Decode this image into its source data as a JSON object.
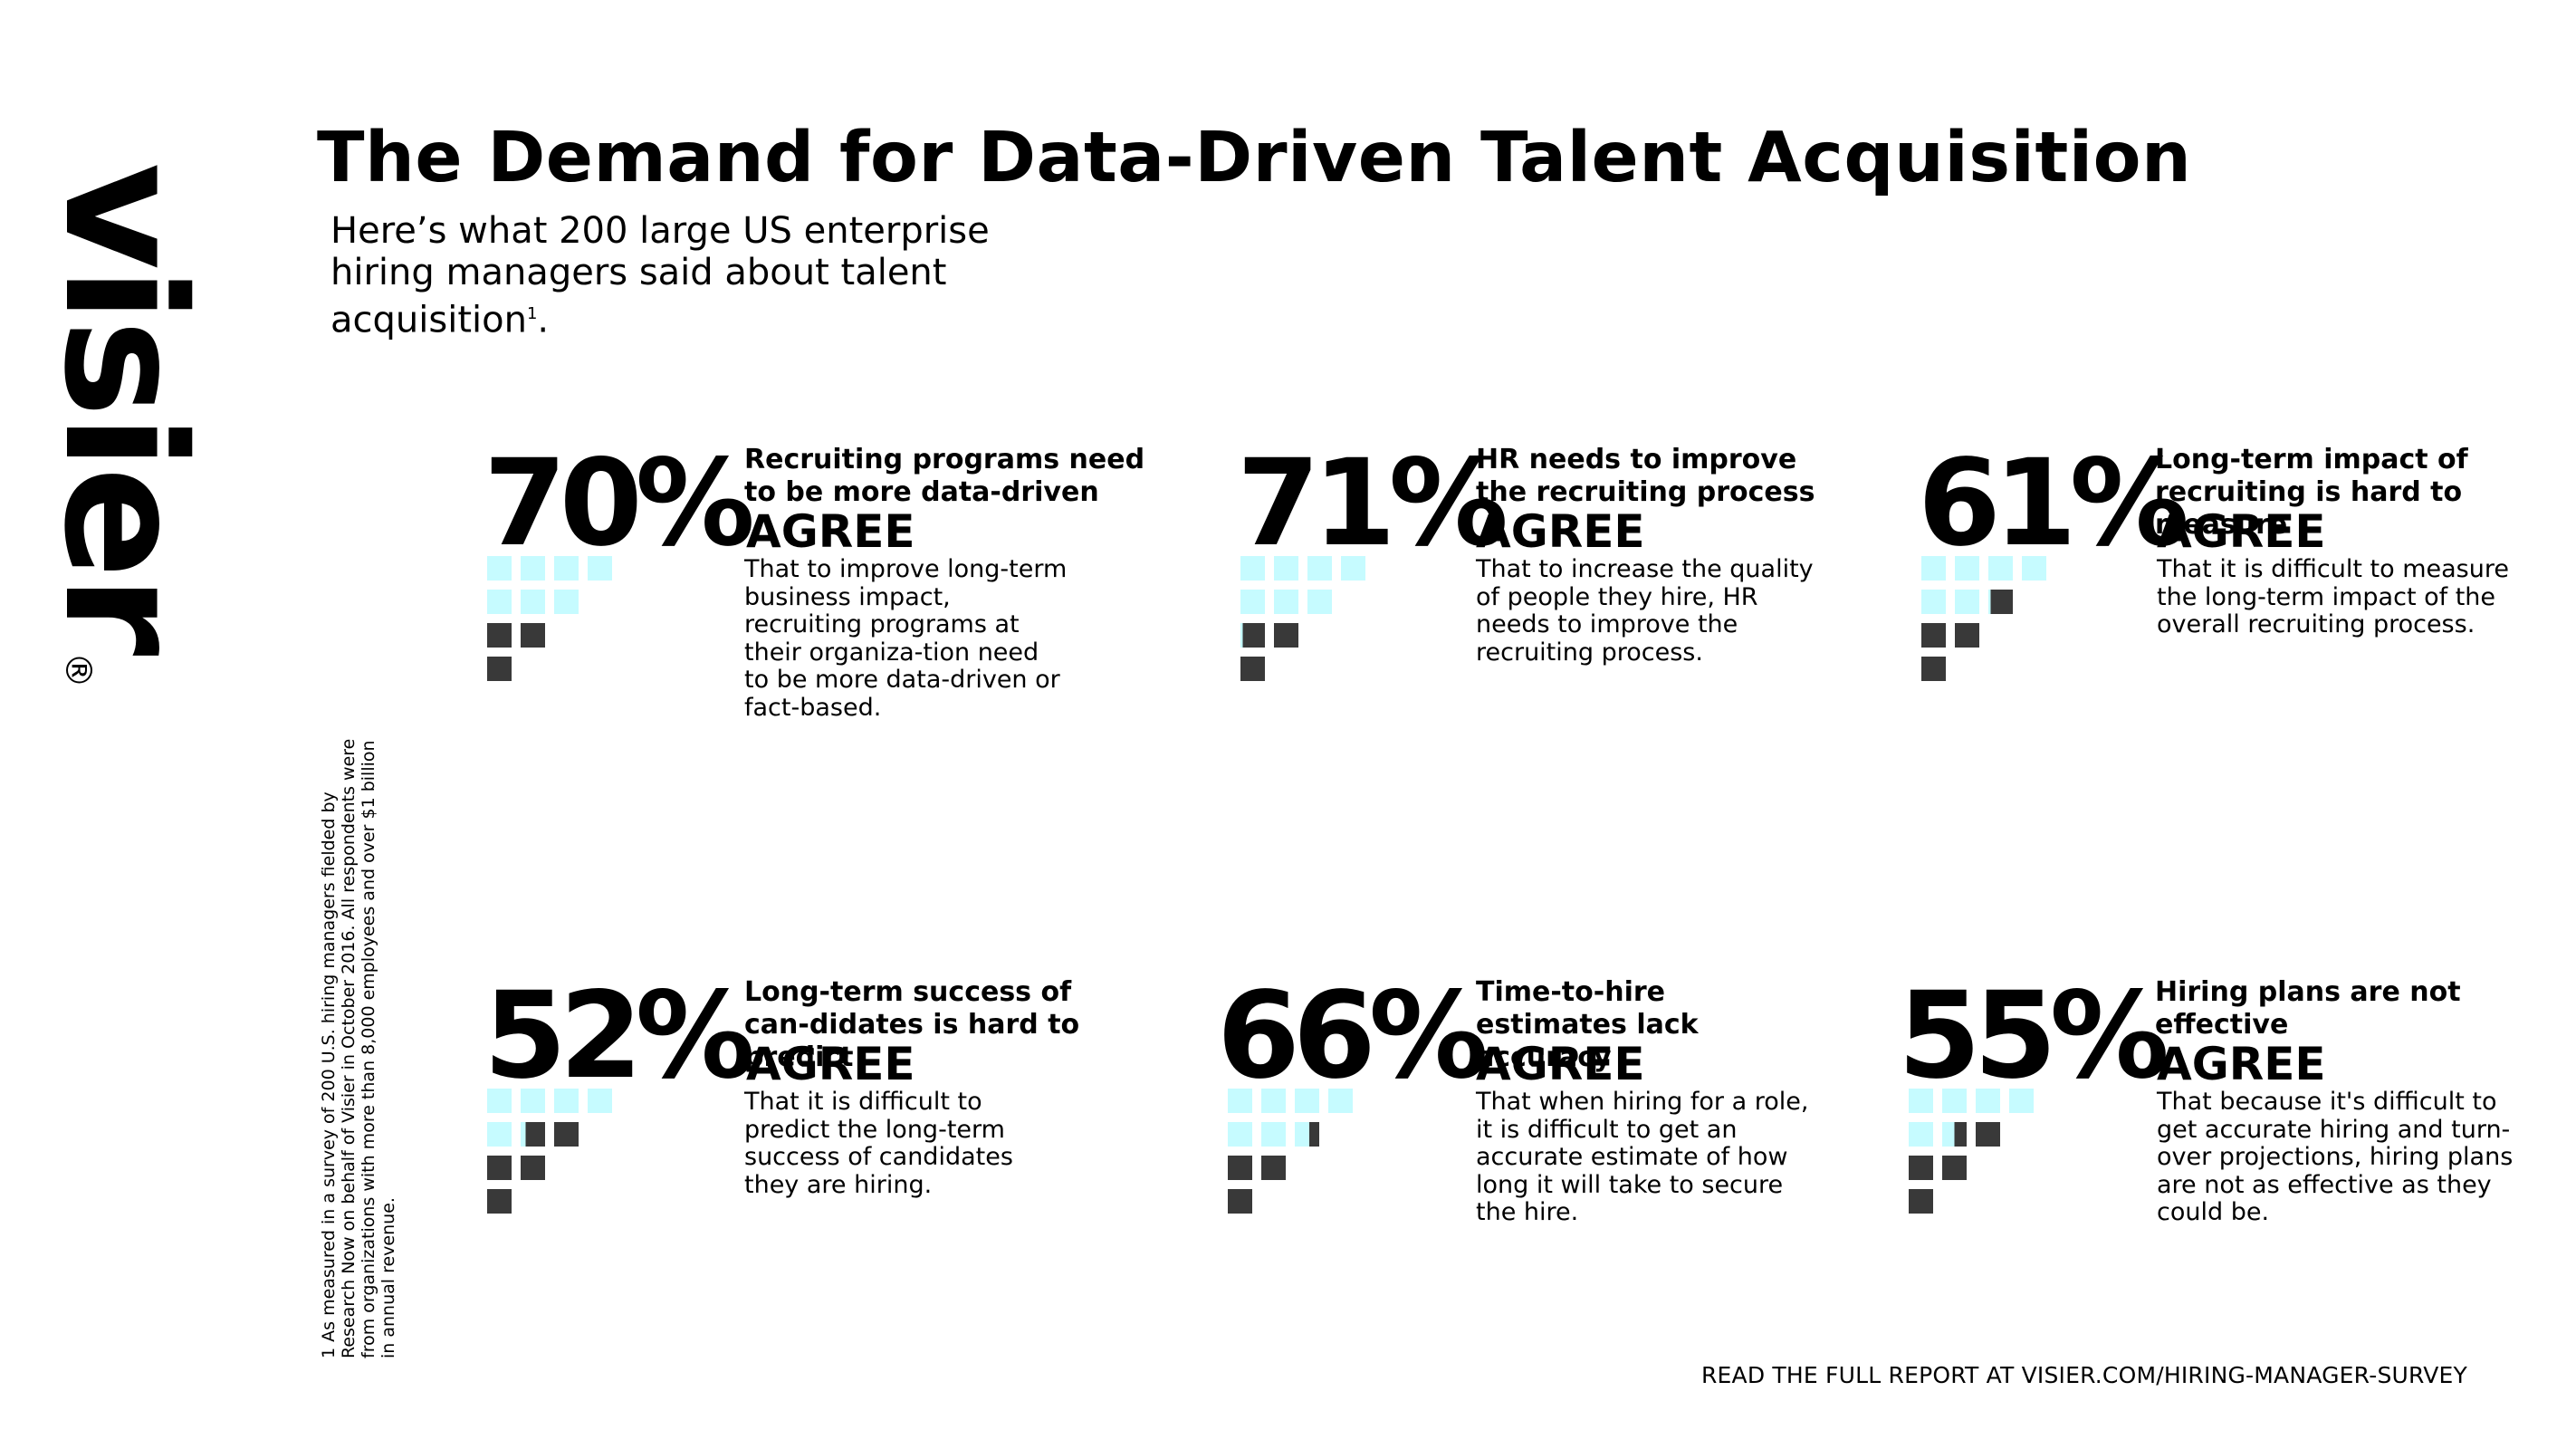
{
  "brand": {
    "logo_text": "visier",
    "registered_mark": "®"
  },
  "header": {
    "title": "The Demand for Data-Driven Talent Acquisition",
    "subtitle": "Here’s what 200 large US enterprise hiring managers said about talent acquisition",
    "subtitle_sup": "1",
    "subtitle_end": "."
  },
  "footnote": "1 As measured in a survey of 200 U.S. hiring managers fielded by Research Now on behalf of Visier in October 2016. All respondents were from organizations with more than 8,000 employees and over $1 billion in annual revenue.",
  "colors": {
    "light_square": "#c6fbff",
    "dark_square": "#393939"
  },
  "stats": [
    {
      "percent": "70%",
      "value": 0.7,
      "heading": "Recruiting programs need to be more data-driven",
      "agree": "AGREE",
      "description": "That to improve long-term business impact, recruiting programs at their organiza-tion need to be more data-driven or fact-based."
    },
    {
      "percent": "71%",
      "value": 0.71,
      "heading": "HR needs to improve the recruiting process",
      "agree": "AGREE",
      "description": "That to increase the quality of people they hire, HR needs to improve the recruiting process."
    },
    {
      "percent": "61%",
      "value": 0.61,
      "heading": "Long-term impact of recruiting is hard to measure",
      "agree": "AGREE",
      "description": "That it is difficult to measure the long-term impact of the overall recruiting process."
    },
    {
      "percent": "52%",
      "value": 0.52,
      "heading": "Long-term success of can-didates is hard to predict",
      "agree": "AGREE",
      "description": "That it is difficult to predict the long-term success of candidates they are hiring."
    },
    {
      "percent": "66%",
      "value": 0.66,
      "heading": "Time-to-hire estimates lack accuracy",
      "agree": "AGREE",
      "description": "That when hiring for a role, it is difficult to get an accurate estimate of how long it will take to secure the hire."
    },
    {
      "percent": "55%",
      "value": 0.55,
      "heading": "Hiring plans are not effective",
      "agree": "AGREE",
      "description": "That because it's difficult to get accurate hiring and turn-over projections, hiring plans are not as effective as they could be."
    }
  ],
  "cta": "READ THE FULL REPORT AT VISIER.COM/HIRING-MANAGER-SURVEY"
}
